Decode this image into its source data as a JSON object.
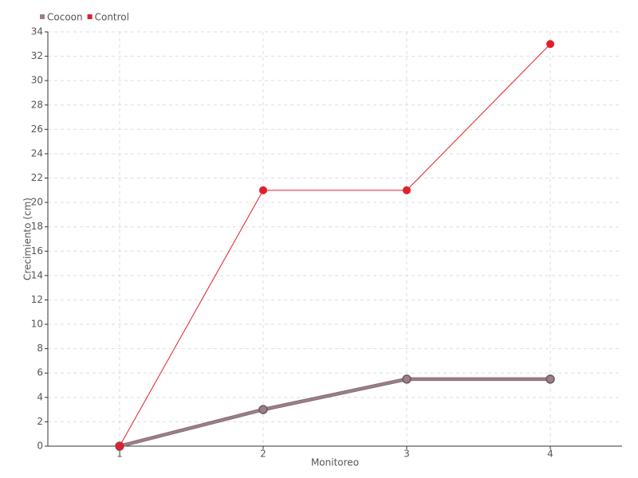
{
  "chart_data": {
    "type": "line",
    "x_label": "Monitoreo",
    "y_label": "Crecimiento (cm)",
    "categories": [
      "1",
      "2",
      "3",
      "4"
    ],
    "series": [
      {
        "name": "Cocoon",
        "color": "#9c7f86",
        "values": [
          0,
          3,
          5.5,
          5.5
        ]
      },
      {
        "name": "Control",
        "color": "#e0202a",
        "values": [
          0,
          21,
          21,
          33
        ]
      }
    ],
    "ylim": [
      0,
      34
    ],
    "yticks": [
      0,
      2,
      4,
      6,
      8,
      10,
      12,
      14,
      16,
      18,
      20,
      22,
      24,
      26,
      28,
      30,
      32,
      34
    ],
    "grid": true,
    "legend": "top-left"
  }
}
